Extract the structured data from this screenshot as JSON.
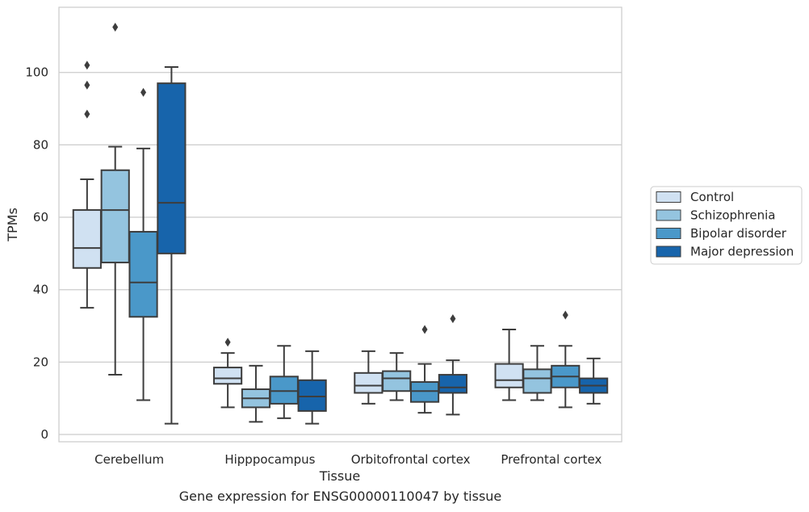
{
  "chart_data": {
    "type": "boxplot",
    "xlabel": "Tissue",
    "ylabel": "TPMs",
    "ylim": [
      -2,
      118
    ],
    "yticks": [
      0,
      20,
      40,
      60,
      80,
      100
    ],
    "grid": "horizontal",
    "legend_position": "right",
    "categories": [
      "Cerebellum",
      "Hipppocampus",
      "Orbitofrontal cortex",
      "Prefrontal cortex"
    ],
    "series": [
      {
        "name": "Control",
        "color": "#d0e1f2",
        "boxes": [
          {
            "q1": 46,
            "median": 51.5,
            "q3": 62,
            "whisker_low": 35,
            "whisker_high": 70.5,
            "outliers": [
              88.5,
              96.5,
              102
            ]
          },
          {
            "q1": 14,
            "median": 15.5,
            "q3": 18.5,
            "whisker_low": 7.5,
            "whisker_high": 22.5,
            "outliers": [
              25.5
            ]
          },
          {
            "q1": 11.5,
            "median": 13.5,
            "q3": 17,
            "whisker_low": 8.5,
            "whisker_high": 23,
            "outliers": []
          },
          {
            "q1": 13,
            "median": 15,
            "q3": 19.5,
            "whisker_low": 9.5,
            "whisker_high": 29,
            "outliers": []
          }
        ]
      },
      {
        "name": "Schizophrenia",
        "color": "#94c4df",
        "boxes": [
          {
            "q1": 47.5,
            "median": 62,
            "q3": 73,
            "whisker_low": 16.5,
            "whisker_high": 79.5,
            "outliers": [
              112.5
            ]
          },
          {
            "q1": 7.5,
            "median": 10,
            "q3": 12.5,
            "whisker_low": 3.5,
            "whisker_high": 19,
            "outliers": []
          },
          {
            "q1": 12,
            "median": 15.5,
            "q3": 17.5,
            "whisker_low": 9.5,
            "whisker_high": 22.5,
            "outliers": []
          },
          {
            "q1": 11.5,
            "median": 15.5,
            "q3": 18,
            "whisker_low": 9.5,
            "whisker_high": 24.5,
            "outliers": []
          }
        ]
      },
      {
        "name": "Bipolar disorder",
        "color": "#4a98c9",
        "boxes": [
          {
            "q1": 32.5,
            "median": 42,
            "q3": 56,
            "whisker_low": 9.5,
            "whisker_high": 79,
            "outliers": [
              94.5
            ]
          },
          {
            "q1": 8.5,
            "median": 12,
            "q3": 16,
            "whisker_low": 4.5,
            "whisker_high": 24.5,
            "outliers": []
          },
          {
            "q1": 9,
            "median": 12,
            "q3": 14.5,
            "whisker_low": 6,
            "whisker_high": 19.5,
            "outliers": [
              29
            ]
          },
          {
            "q1": 13,
            "median": 16,
            "q3": 19,
            "whisker_low": 7.5,
            "whisker_high": 24.5,
            "outliers": [
              33
            ]
          }
        ]
      },
      {
        "name": "Major depression",
        "color": "#1764ab",
        "boxes": [
          {
            "q1": 50,
            "median": 64,
            "q3": 97,
            "whisker_low": 3,
            "whisker_high": 101.5,
            "outliers": []
          },
          {
            "q1": 6.5,
            "median": 10.5,
            "q3": 15,
            "whisker_low": 3,
            "whisker_high": 23,
            "outliers": []
          },
          {
            "q1": 11.5,
            "median": 13,
            "q3": 16.5,
            "whisker_low": 5.5,
            "whisker_high": 20.5,
            "outliers": [
              32
            ]
          },
          {
            "q1": 11.5,
            "median": 13.5,
            "q3": 15.5,
            "whisker_low": 8.5,
            "whisker_high": 21,
            "outliers": []
          }
        ]
      }
    ],
    "caption": "Gene expression for ENSG00000110047 by tissue"
  }
}
